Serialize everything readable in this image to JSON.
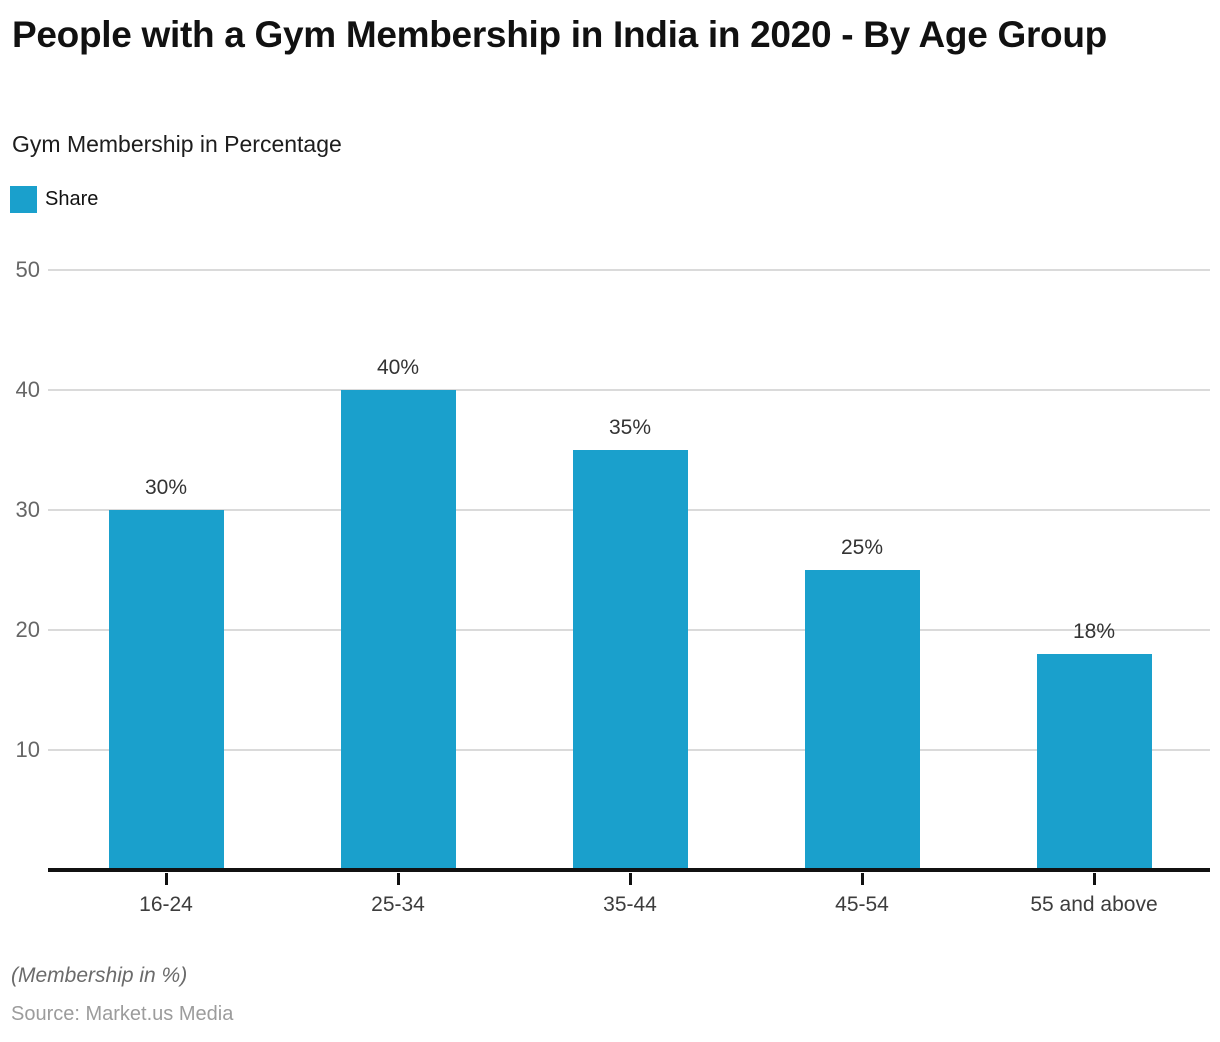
{
  "header": {
    "title": "People with a Gym Membership in India in 2020 - By Age Group",
    "subtitle": "Gym Membership in Percentage"
  },
  "legend": {
    "items": [
      {
        "label": "Share",
        "color": "#1AA0CC"
      }
    ]
  },
  "chart_data": {
    "type": "bar",
    "title": "People with a Gym Membership in India in 2020 - By Age Group",
    "subtitle": "Gym Membership in Percentage",
    "categories": [
      "16-24",
      "25-34",
      "35-44",
      "45-54",
      "55 and above"
    ],
    "series": [
      {
        "name": "Share",
        "values": [
          30,
          40,
          35,
          25,
          18
        ]
      }
    ],
    "data_labels": [
      "30%",
      "40%",
      "35%",
      "25%",
      "18%"
    ],
    "ylim": [
      0,
      50
    ],
    "yticks": [
      10,
      20,
      30,
      40,
      50
    ],
    "grid": true,
    "legend_position": "top-left",
    "bar_color": "#1AA0CC",
    "grid_color": "#dadada",
    "axis_color": "#111111"
  },
  "footer": {
    "note": "(Membership in %)",
    "source": "Source: Market.us Media"
  }
}
